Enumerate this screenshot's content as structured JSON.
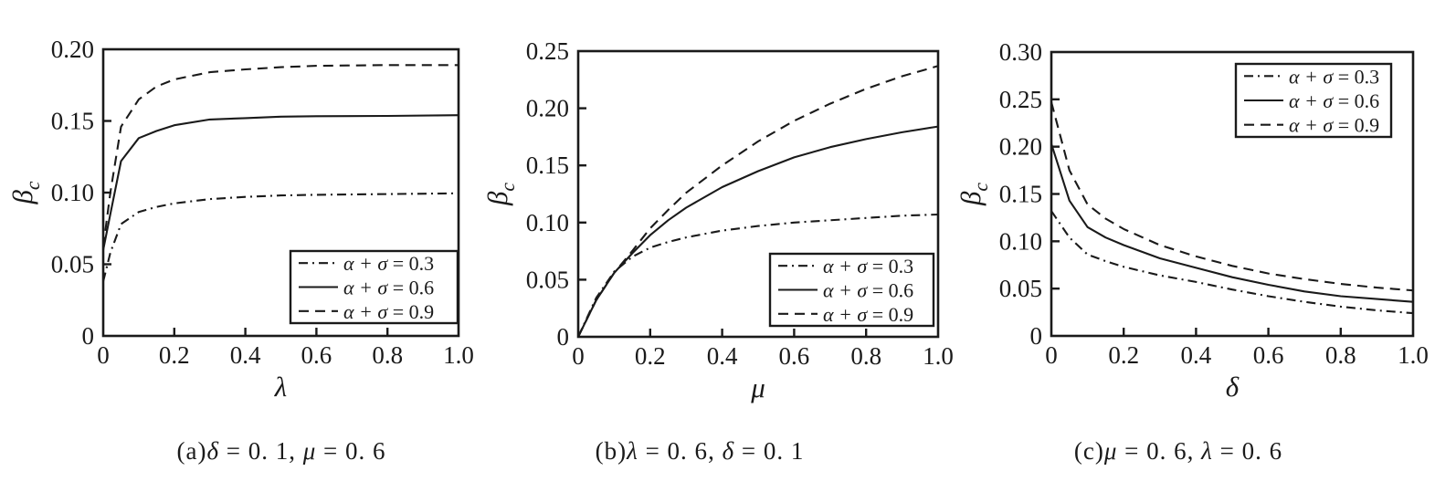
{
  "figure": {
    "line_color": "#1a1a1a",
    "background_color": "#ffffff"
  },
  "chart_data": [
    {
      "panel": "a",
      "type": "line",
      "xlabel": "λ",
      "ylabel_main": "β",
      "ylabel_sub": "c",
      "xlim": [
        0,
        1.0
      ],
      "ylim": [
        0,
        0.2
      ],
      "xticks": [
        0,
        0.2,
        0.4,
        0.6,
        0.8,
        1.0
      ],
      "xtick_labels": [
        "0",
        "0.2",
        "0.4",
        "0.6",
        "0.8",
        "1.0"
      ],
      "yticks": [
        0,
        0.05,
        0.1,
        0.15,
        0.2
      ],
      "ytick_labels": [
        "0",
        "0.05",
        "0.10",
        "0.15",
        "0.20"
      ],
      "grid": false,
      "legend_position": "bottom-right",
      "x": [
        0,
        0.02,
        0.05,
        0.1,
        0.15,
        0.2,
        0.3,
        0.4,
        0.5,
        0.6,
        0.8,
        1.0
      ],
      "series": [
        {
          "name": "α + σ = 0.3",
          "style": "dashdot",
          "values": [
            0.038,
            0.058,
            0.078,
            0.0865,
            0.09,
            0.0925,
            0.0955,
            0.097,
            0.098,
            0.0985,
            0.099,
            0.0995
          ]
        },
        {
          "name": "α + σ = 0.6",
          "style": "solid",
          "values": [
            0.06,
            0.085,
            0.122,
            0.138,
            0.143,
            0.147,
            0.151,
            0.152,
            0.153,
            0.1533,
            0.1535,
            0.154
          ]
        },
        {
          "name": "α + σ = 0.9",
          "style": "dashed",
          "values": [
            0.062,
            0.1,
            0.146,
            0.165,
            0.174,
            0.179,
            0.184,
            0.186,
            0.1875,
            0.1885,
            0.189,
            0.189
          ]
        }
      ],
      "caption": {
        "prefix": "(a)",
        "p1_var": "δ",
        "p1_val": " = 0. 1",
        "sep": ", ",
        "p2_var": "μ",
        "p2_val": " = 0. 6"
      }
    },
    {
      "panel": "b",
      "type": "line",
      "xlabel": "μ",
      "ylabel_main": "β",
      "ylabel_sub": "c",
      "xlim": [
        0,
        1.0
      ],
      "ylim": [
        0,
        0.25
      ],
      "xticks": [
        0,
        0.2,
        0.4,
        0.6,
        0.8,
        1.0
      ],
      "xtick_labels": [
        "0",
        "0.2",
        "0.4",
        "0.6",
        "0.8",
        "1.0"
      ],
      "yticks": [
        0,
        0.05,
        0.1,
        0.15,
        0.2,
        0.25
      ],
      "ytick_labels": [
        "0",
        "0.05",
        "0.10",
        "0.15",
        "0.20",
        "0.25"
      ],
      "grid": false,
      "legend_position": "bottom-right",
      "x": [
        0,
        0.05,
        0.1,
        0.15,
        0.2,
        0.25,
        0.3,
        0.4,
        0.5,
        0.6,
        0.7,
        0.8,
        0.9,
        1.0
      ],
      "series": [
        {
          "name": "α + σ = 0.3",
          "style": "dashdot",
          "values": [
            0,
            0.034,
            0.057,
            0.07,
            0.078,
            0.083,
            0.087,
            0.093,
            0.097,
            0.1,
            0.102,
            0.104,
            0.106,
            0.107
          ]
        },
        {
          "name": "α + σ = 0.6",
          "style": "solid",
          "values": [
            0,
            0.032,
            0.056,
            0.073,
            0.089,
            0.102,
            0.113,
            0.131,
            0.145,
            0.157,
            0.166,
            0.173,
            0.179,
            0.184
          ]
        },
        {
          "name": "α + σ = 0.9",
          "style": "dashed",
          "values": [
            0,
            0.032,
            0.056,
            0.075,
            0.095,
            0.111,
            0.126,
            0.15,
            0.171,
            0.189,
            0.204,
            0.217,
            0.228,
            0.237
          ]
        }
      ],
      "caption": {
        "prefix": "(b)",
        "p1_var": "λ",
        "p1_val": " = 0. 6",
        "sep": ", ",
        "p2_var": "δ",
        "p2_val": " = 0. 1"
      }
    },
    {
      "panel": "c",
      "type": "line",
      "xlabel": "δ",
      "ylabel_main": "β",
      "ylabel_sub": "c",
      "xlim": [
        0,
        1.0
      ],
      "ylim": [
        0,
        0.3
      ],
      "xticks": [
        0,
        0.2,
        0.4,
        0.6,
        0.8,
        1.0
      ],
      "xtick_labels": [
        "0",
        "0.2",
        "0.4",
        "0.6",
        "0.8",
        "1.0"
      ],
      "yticks": [
        0,
        0.05,
        0.1,
        0.15,
        0.2,
        0.25,
        0.3
      ],
      "ytick_labels": [
        "0",
        "0.05",
        "0.10",
        "0.15",
        "0.20",
        "0.25",
        "0.30"
      ],
      "grid": false,
      "legend_position": "top-right",
      "x": [
        0,
        0.05,
        0.1,
        0.15,
        0.2,
        0.3,
        0.4,
        0.5,
        0.6,
        0.7,
        0.8,
        0.9,
        1.0
      ],
      "series": [
        {
          "name": "α + σ = 0.3",
          "style": "dashdot",
          "values": [
            0.132,
            0.104,
            0.086,
            0.079,
            0.073,
            0.064,
            0.057,
            0.049,
            0.042,
            0.036,
            0.031,
            0.027,
            0.024
          ]
        },
        {
          "name": "α + σ = 0.6",
          "style": "solid",
          "values": [
            0.203,
            0.143,
            0.115,
            0.104,
            0.096,
            0.082,
            0.072,
            0.062,
            0.054,
            0.047,
            0.042,
            0.039,
            0.036
          ]
        },
        {
          "name": "α + σ = 0.9",
          "style": "dashed",
          "values": [
            0.247,
            0.175,
            0.139,
            0.124,
            0.113,
            0.096,
            0.084,
            0.074,
            0.066,
            0.06,
            0.055,
            0.051,
            0.048
          ]
        }
      ],
      "caption": {
        "prefix": "(c)",
        "p1_var": "μ",
        "p1_val": " = 0. 6",
        "sep": ", ",
        "p2_var": "λ",
        "p2_val": " = 0. 6"
      }
    }
  ]
}
